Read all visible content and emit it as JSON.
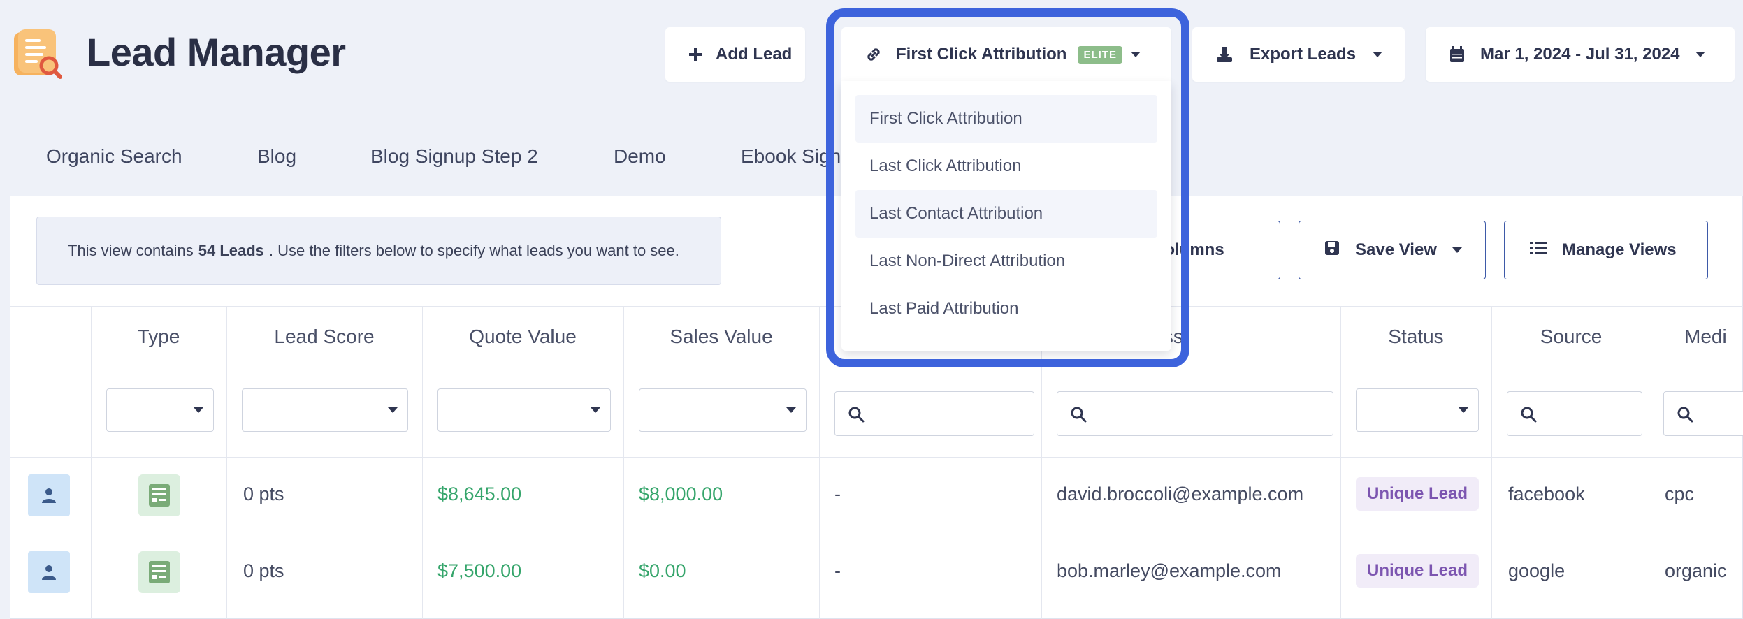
{
  "header": {
    "title": "Lead Manager",
    "add_lead": "Add Lead",
    "attribution_selected": "First Click Attribution",
    "elite_badge": "ELITE",
    "export_leads": "Export Leads",
    "date_range": "Mar 1, 2024 - Jul 31, 2024"
  },
  "tabs": [
    "Organic Search",
    "Blog",
    "Blog Signup Step 2",
    "Demo",
    "Ebook Sign"
  ],
  "info": {
    "prefix": "This view contains",
    "count": "54 Leads",
    "suffix": ". Use the filters below to specify what leads you want to see."
  },
  "actions": {
    "columns": "e Columns",
    "save_view": "Save View",
    "manage_views": "Manage Views"
  },
  "table": {
    "headers": [
      "Type",
      "Lead Score",
      "Quote Value",
      "Sales Value",
      "ress",
      "Status",
      "Source",
      "Medi"
    ],
    "rows": [
      {
        "score": "0 pts",
        "quote": "$8,645.00",
        "sales": "$8,000.00",
        "dash": "-",
        "email": "david.broccoli@example.com",
        "status": "Unique Lead",
        "source": "facebook",
        "medium": "cpc"
      },
      {
        "score": "0 pts",
        "quote": "$7,500.00",
        "sales": "$0.00",
        "dash": "-",
        "email": "bob.marley@example.com",
        "status": "Unique Lead",
        "source": "google",
        "medium": "organic"
      }
    ]
  },
  "attribution_menu": {
    "items": [
      "First Click Attribution",
      "Last Click Attribution",
      "Last Contact Attribution",
      "Last Non-Direct Attribution",
      "Last Paid Attribution"
    ]
  },
  "colors": {
    "accent": "#3d63dc",
    "money_green": "#35a56b",
    "status_purple": "#7c55b0",
    "elite_green": "#8dbd8a"
  },
  "icons": [
    "lead-manager-logo-icon",
    "plus-icon",
    "link-icon",
    "download-icon",
    "calendar-icon",
    "save-icon",
    "list-icon",
    "search-icon",
    "person-icon",
    "form-icon",
    "caret-down-icon"
  ]
}
